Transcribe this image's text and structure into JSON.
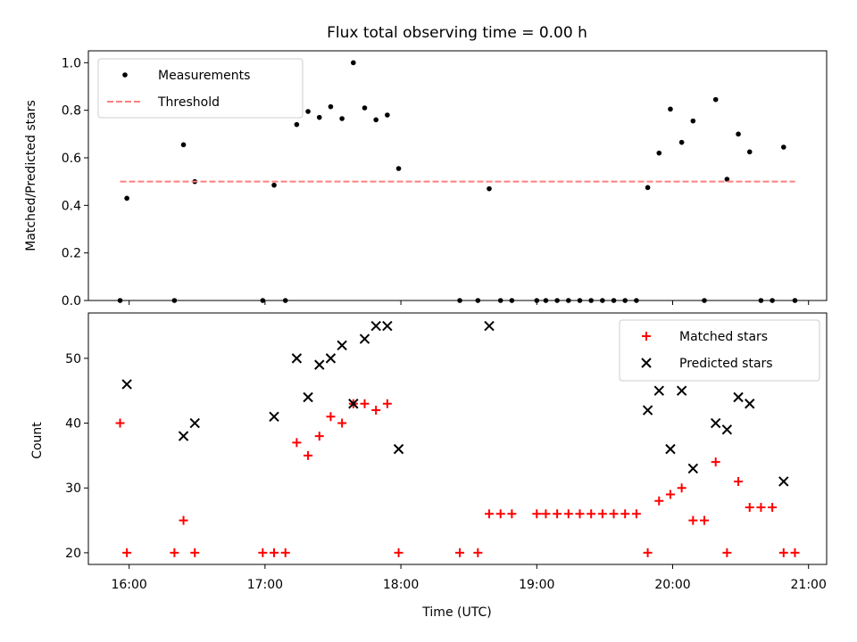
{
  "chart_data": [
    {
      "type": "scatter",
      "title": "Flux total observing time = 0.00 h",
      "ylabel": "Matched/Predicted stars",
      "xlabel": "",
      "xlim": [
        "15:42",
        "21:08"
      ],
      "ylim": [
        0,
        1.05
      ],
      "yticks": [
        0.0,
        0.2,
        0.4,
        0.6,
        0.8,
        1.0
      ],
      "ytick_labels": [
        "0.0",
        "0.2",
        "0.4",
        "0.6",
        "0.8",
        "1.0"
      ],
      "xticks": [
        "16:00",
        "17:00",
        "18:00",
        "19:00",
        "20:00",
        "21:00"
      ],
      "legend": {
        "placement": "top-left",
        "entries": [
          "Measurements",
          "Threshold"
        ]
      },
      "series": [
        {
          "name": "Measurements",
          "marker": "dot",
          "color": "#000000",
          "points": [
            [
              "15:56",
              0.0
            ],
            [
              "15:59",
              0.43
            ],
            [
              "16:20",
              0.0
            ],
            [
              "16:24",
              0.655
            ],
            [
              "16:29",
              0.5
            ],
            [
              "16:59",
              0.0
            ],
            [
              "17:04",
              0.485
            ],
            [
              "17:09",
              0.0
            ],
            [
              "17:14",
              0.74
            ],
            [
              "17:19",
              0.795
            ],
            [
              "17:24",
              0.77
            ],
            [
              "17:29",
              0.815
            ],
            [
              "17:34",
              0.765
            ],
            [
              "17:39",
              1.0
            ],
            [
              "17:44",
              0.81
            ],
            [
              "17:49",
              0.76
            ],
            [
              "17:54",
              0.78
            ],
            [
              "17:59",
              0.555
            ],
            [
              "18:26",
              0.0
            ],
            [
              "18:34",
              0.0
            ],
            [
              "18:39",
              0.47
            ],
            [
              "18:44",
              0.0
            ],
            [
              "18:49",
              0.0
            ],
            [
              "19:00",
              0.0
            ],
            [
              "19:04",
              0.0
            ],
            [
              "19:09",
              0.0
            ],
            [
              "19:14",
              0.0
            ],
            [
              "19:19",
              0.0
            ],
            [
              "19:24",
              0.0
            ],
            [
              "19:29",
              0.0
            ],
            [
              "19:34",
              0.0
            ],
            [
              "19:39",
              0.0
            ],
            [
              "19:44",
              0.0
            ],
            [
              "19:49",
              0.475
            ],
            [
              "19:54",
              0.62
            ],
            [
              "19:59",
              0.805
            ],
            [
              "20:04",
              0.665
            ],
            [
              "20:09",
              0.755
            ],
            [
              "20:14",
              0.0
            ],
            [
              "20:19",
              0.845
            ],
            [
              "20:24",
              0.51
            ],
            [
              "20:29",
              0.7
            ],
            [
              "20:34",
              0.625
            ],
            [
              "20:39",
              0.0
            ],
            [
              "20:44",
              0.0
            ],
            [
              "20:49",
              0.645
            ],
            [
              "20:54",
              0.0
            ]
          ]
        },
        {
          "name": "Threshold",
          "marker": "dashed-line",
          "color": "#ff7f7f",
          "points": [
            [
              "15:56",
              0.5
            ],
            [
              "20:54",
              0.5
            ]
          ]
        }
      ]
    },
    {
      "type": "scatter",
      "title": "",
      "ylabel": "Count",
      "xlabel": "Time (UTC)",
      "xlim": [
        "15:42",
        "21:08"
      ],
      "ylim": [
        18.2,
        57.0
      ],
      "yticks": [
        20,
        30,
        40,
        50
      ],
      "ytick_labels": [
        "20",
        "30",
        "40",
        "50"
      ],
      "xticks": [
        "16:00",
        "17:00",
        "18:00",
        "19:00",
        "20:00",
        "21:00"
      ],
      "legend": {
        "placement": "top-right",
        "entries": [
          "Matched stars",
          "Predicted stars"
        ]
      },
      "series": [
        {
          "name": "Matched stars",
          "marker": "plus",
          "color": "#ff0000",
          "points": [
            [
              "15:56",
              40
            ],
            [
              "15:59",
              20
            ],
            [
              "16:20",
              20
            ],
            [
              "16:24",
              25
            ],
            [
              "16:29",
              20
            ],
            [
              "16:59",
              20
            ],
            [
              "17:04",
              20
            ],
            [
              "17:09",
              20
            ],
            [
              "17:14",
              37
            ],
            [
              "17:19",
              35
            ],
            [
              "17:24",
              38
            ],
            [
              "17:29",
              41
            ],
            [
              "17:34",
              40
            ],
            [
              "17:39",
              43
            ],
            [
              "17:44",
              43
            ],
            [
              "17:49",
              42
            ],
            [
              "17:54",
              43
            ],
            [
              "17:59",
              20
            ],
            [
              "18:26",
              20
            ],
            [
              "18:34",
              20
            ],
            [
              "18:39",
              26
            ],
            [
              "18:44",
              26
            ],
            [
              "18:49",
              26
            ],
            [
              "19:00",
              26
            ],
            [
              "19:04",
              26
            ],
            [
              "19:09",
              26
            ],
            [
              "19:14",
              26
            ],
            [
              "19:19",
              26
            ],
            [
              "19:24",
              26
            ],
            [
              "19:29",
              26
            ],
            [
              "19:34",
              26
            ],
            [
              "19:39",
              26
            ],
            [
              "19:44",
              26
            ],
            [
              "19:49",
              20
            ],
            [
              "19:54",
              28
            ],
            [
              "19:59",
              29
            ],
            [
              "20:04",
              30
            ],
            [
              "20:09",
              25
            ],
            [
              "20:14",
              25
            ],
            [
              "20:19",
              34
            ],
            [
              "20:24",
              20
            ],
            [
              "20:29",
              31
            ],
            [
              "20:34",
              27
            ],
            [
              "20:39",
              27
            ],
            [
              "20:44",
              27
            ],
            [
              "20:49",
              20
            ],
            [
              "20:54",
              20
            ]
          ]
        },
        {
          "name": "Predicted stars",
          "marker": "x",
          "color": "#000000",
          "points": [
            [
              "15:59",
              46
            ],
            [
              "16:24",
              38
            ],
            [
              "16:29",
              40
            ],
            [
              "17:04",
              41
            ],
            [
              "17:14",
              50
            ],
            [
              "17:19",
              44
            ],
            [
              "17:24",
              49
            ],
            [
              "17:29",
              50
            ],
            [
              "17:34",
              52
            ],
            [
              "17:39",
              43
            ],
            [
              "17:44",
              53
            ],
            [
              "17:49",
              55
            ],
            [
              "17:54",
              55
            ],
            [
              "17:59",
              36
            ],
            [
              "18:39",
              55
            ],
            [
              "19:49",
              42
            ],
            [
              "19:54",
              45
            ],
            [
              "19:59",
              36
            ],
            [
              "20:04",
              45
            ],
            [
              "20:09",
              33
            ],
            [
              "20:19",
              40
            ],
            [
              "20:24",
              39
            ],
            [
              "20:29",
              44
            ],
            [
              "20:34",
              43
            ],
            [
              "20:49",
              31
            ]
          ]
        }
      ]
    }
  ]
}
